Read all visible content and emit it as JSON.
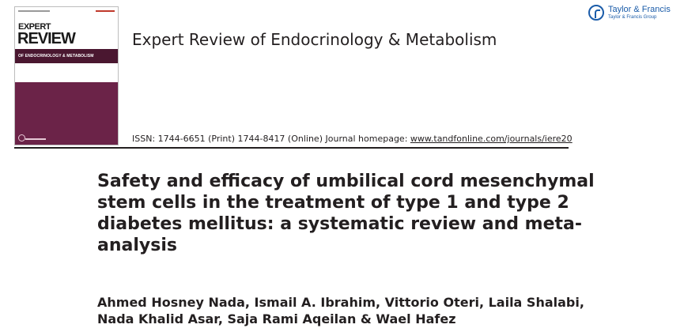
{
  "cover": {
    "word_top": "EXPERT",
    "word_main": "REVIEW",
    "subject": "OF ENDOCRINOLOGY & METABOLISM",
    "colors": {
      "plum": "#6b2348",
      "dark_bar": "#4a1730"
    }
  },
  "header": {
    "journal_title": "Expert Review of Endocrinology & Metabolism",
    "publisher_name": "Taylor & Francis",
    "publisher_group": "Taylor & Francis Group",
    "publisher_logo_icon": "taylor-francis-icon",
    "publisher_color": "#1b5ca9"
  },
  "issn": {
    "text": "ISSN: 1744-6651 (Print) 1744-8417 (Online) Journal homepage: ",
    "homepage_link": "www.tandfonline.com/journals/iere20"
  },
  "article": {
    "title": "Safety and efficacy of umbilical cord mesenchymal stem cells in the treatment of type 1 and type 2 diabetes mellitus: a systematic review and meta-analysis",
    "authors": "Ahmed Hosney Nada, Ismail A. Ibrahim, Vittorio Oteri, Laila Shalabi, Nada Khalid Asar, Saja Rami Aqeilan & Wael Hafez"
  }
}
